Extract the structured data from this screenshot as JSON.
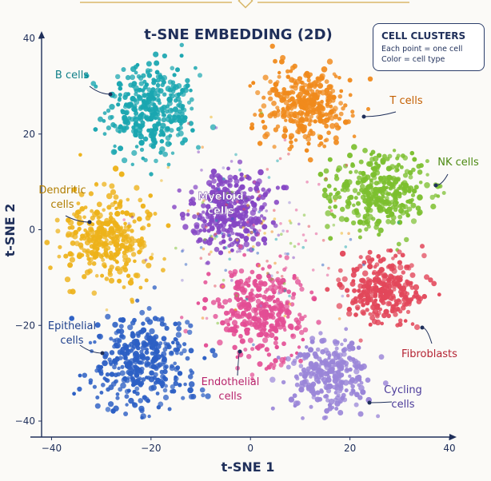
{
  "chart_data": {
    "type": "scatter",
    "title": "t-SNE EMBEDDING (2D)",
    "xlabel": "t-SNE 1",
    "ylabel": "t-SNE 2",
    "xlim": [
      -42,
      40
    ],
    "ylim": [
      -40,
      40
    ],
    "xticks": [
      -40,
      -20,
      0,
      20,
      40
    ],
    "yticks": [
      -40,
      -20,
      0,
      20,
      40
    ],
    "grid": false,
    "legend": {
      "placement": "top-right",
      "title": "CELL CLUSTERS",
      "lines": [
        "Each point = one cell",
        "Color = cell type"
      ]
    },
    "clusters": [
      {
        "name": "B cells",
        "label_lines": [
          "B cells"
        ],
        "color": "#1aa6b0",
        "center": [
          -20,
          25
        ],
        "spread": [
          6,
          6.5
        ],
        "count": 360
      },
      {
        "name": "T cells",
        "label_lines": [
          "T cells"
        ],
        "color": "#f08a1c",
        "center": [
          11,
          26
        ],
        "spread": [
          5.8,
          5.5
        ],
        "count": 340
      },
      {
        "name": "NK cells",
        "label_lines": [
          "NK cells"
        ],
        "color": "#7cbf2f",
        "center": [
          26,
          8
        ],
        "spread": [
          6.5,
          5.5
        ],
        "count": 340
      },
      {
        "name": "Myeloid cells",
        "label_lines": [
          "Myeloid",
          "cells"
        ],
        "color": "#8546c4",
        "center": [
          -4,
          4
        ],
        "spread": [
          5.2,
          5.5
        ],
        "count": 320
      },
      {
        "name": "Dendritic cells",
        "label_lines": [
          "Dendritic",
          "cells"
        ],
        "color": "#edb21a",
        "center": [
          -29,
          -2
        ],
        "spread": [
          6,
          6.5
        ],
        "count": 320
      },
      {
        "name": "Fibroblasts",
        "label_lines": [
          "Fibroblasts"
        ],
        "color": "#e2475a",
        "center": [
          27,
          -13
        ],
        "spread": [
          5.5,
          4.5
        ],
        "count": 290
      },
      {
        "name": "Endothelial cells",
        "label_lines": [
          "Endothelial",
          "cells"
        ],
        "color": "#e34d94",
        "center": [
          2,
          -17
        ],
        "spread": [
          6,
          6
        ],
        "count": 330
      },
      {
        "name": "Epithelial cells",
        "label_lines": [
          "Epithelial",
          "cells"
        ],
        "color": "#2c5fc4",
        "center": [
          -22,
          -28
        ],
        "spread": [
          6.5,
          6.5
        ],
        "count": 370
      },
      {
        "name": "Cycling cells",
        "label_lines": [
          "Cycling",
          "cells"
        ],
        "color": "#9a85d8",
        "center": [
          16,
          -30
        ],
        "spread": [
          5.5,
          4.8
        ],
        "count": 280
      }
    ]
  }
}
